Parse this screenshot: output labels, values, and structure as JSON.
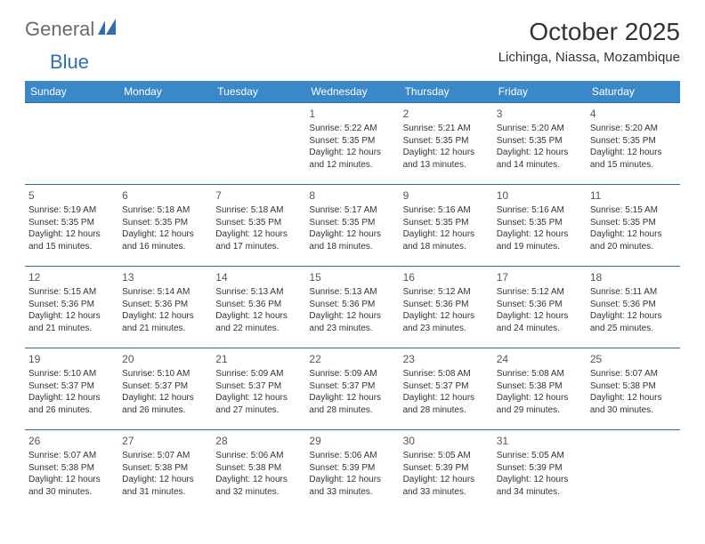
{
  "logo": {
    "text1": "General",
    "text2": "Blue"
  },
  "title": "October 2025",
  "subtitle": "Lichinga, Niassa, Mozambique",
  "header_color": "#3a88c8",
  "row_border_color": "#3a6a9a",
  "days": [
    "Sunday",
    "Monday",
    "Tuesday",
    "Wednesday",
    "Thursday",
    "Friday",
    "Saturday"
  ],
  "weeks": [
    [
      null,
      null,
      null,
      {
        "n": "1",
        "sr": "Sunrise: 5:22 AM",
        "ss": "Sunset: 5:35 PM",
        "d1": "Daylight: 12 hours",
        "d2": "and 12 minutes."
      },
      {
        "n": "2",
        "sr": "Sunrise: 5:21 AM",
        "ss": "Sunset: 5:35 PM",
        "d1": "Daylight: 12 hours",
        "d2": "and 13 minutes."
      },
      {
        "n": "3",
        "sr": "Sunrise: 5:20 AM",
        "ss": "Sunset: 5:35 PM",
        "d1": "Daylight: 12 hours",
        "d2": "and 14 minutes."
      },
      {
        "n": "4",
        "sr": "Sunrise: 5:20 AM",
        "ss": "Sunset: 5:35 PM",
        "d1": "Daylight: 12 hours",
        "d2": "and 15 minutes."
      }
    ],
    [
      {
        "n": "5",
        "sr": "Sunrise: 5:19 AM",
        "ss": "Sunset: 5:35 PM",
        "d1": "Daylight: 12 hours",
        "d2": "and 15 minutes."
      },
      {
        "n": "6",
        "sr": "Sunrise: 5:18 AM",
        "ss": "Sunset: 5:35 PM",
        "d1": "Daylight: 12 hours",
        "d2": "and 16 minutes."
      },
      {
        "n": "7",
        "sr": "Sunrise: 5:18 AM",
        "ss": "Sunset: 5:35 PM",
        "d1": "Daylight: 12 hours",
        "d2": "and 17 minutes."
      },
      {
        "n": "8",
        "sr": "Sunrise: 5:17 AM",
        "ss": "Sunset: 5:35 PM",
        "d1": "Daylight: 12 hours",
        "d2": "and 18 minutes."
      },
      {
        "n": "9",
        "sr": "Sunrise: 5:16 AM",
        "ss": "Sunset: 5:35 PM",
        "d1": "Daylight: 12 hours",
        "d2": "and 18 minutes."
      },
      {
        "n": "10",
        "sr": "Sunrise: 5:16 AM",
        "ss": "Sunset: 5:35 PM",
        "d1": "Daylight: 12 hours",
        "d2": "and 19 minutes."
      },
      {
        "n": "11",
        "sr": "Sunrise: 5:15 AM",
        "ss": "Sunset: 5:35 PM",
        "d1": "Daylight: 12 hours",
        "d2": "and 20 minutes."
      }
    ],
    [
      {
        "n": "12",
        "sr": "Sunrise: 5:15 AM",
        "ss": "Sunset: 5:36 PM",
        "d1": "Daylight: 12 hours",
        "d2": "and 21 minutes."
      },
      {
        "n": "13",
        "sr": "Sunrise: 5:14 AM",
        "ss": "Sunset: 5:36 PM",
        "d1": "Daylight: 12 hours",
        "d2": "and 21 minutes."
      },
      {
        "n": "14",
        "sr": "Sunrise: 5:13 AM",
        "ss": "Sunset: 5:36 PM",
        "d1": "Daylight: 12 hours",
        "d2": "and 22 minutes."
      },
      {
        "n": "15",
        "sr": "Sunrise: 5:13 AM",
        "ss": "Sunset: 5:36 PM",
        "d1": "Daylight: 12 hours",
        "d2": "and 23 minutes."
      },
      {
        "n": "16",
        "sr": "Sunrise: 5:12 AM",
        "ss": "Sunset: 5:36 PM",
        "d1": "Daylight: 12 hours",
        "d2": "and 23 minutes."
      },
      {
        "n": "17",
        "sr": "Sunrise: 5:12 AM",
        "ss": "Sunset: 5:36 PM",
        "d1": "Daylight: 12 hours",
        "d2": "and 24 minutes."
      },
      {
        "n": "18",
        "sr": "Sunrise: 5:11 AM",
        "ss": "Sunset: 5:36 PM",
        "d1": "Daylight: 12 hours",
        "d2": "and 25 minutes."
      }
    ],
    [
      {
        "n": "19",
        "sr": "Sunrise: 5:10 AM",
        "ss": "Sunset: 5:37 PM",
        "d1": "Daylight: 12 hours",
        "d2": "and 26 minutes."
      },
      {
        "n": "20",
        "sr": "Sunrise: 5:10 AM",
        "ss": "Sunset: 5:37 PM",
        "d1": "Daylight: 12 hours",
        "d2": "and 26 minutes."
      },
      {
        "n": "21",
        "sr": "Sunrise: 5:09 AM",
        "ss": "Sunset: 5:37 PM",
        "d1": "Daylight: 12 hours",
        "d2": "and 27 minutes."
      },
      {
        "n": "22",
        "sr": "Sunrise: 5:09 AM",
        "ss": "Sunset: 5:37 PM",
        "d1": "Daylight: 12 hours",
        "d2": "and 28 minutes."
      },
      {
        "n": "23",
        "sr": "Sunrise: 5:08 AM",
        "ss": "Sunset: 5:37 PM",
        "d1": "Daylight: 12 hours",
        "d2": "and 28 minutes."
      },
      {
        "n": "24",
        "sr": "Sunrise: 5:08 AM",
        "ss": "Sunset: 5:38 PM",
        "d1": "Daylight: 12 hours",
        "d2": "and 29 minutes."
      },
      {
        "n": "25",
        "sr": "Sunrise: 5:07 AM",
        "ss": "Sunset: 5:38 PM",
        "d1": "Daylight: 12 hours",
        "d2": "and 30 minutes."
      }
    ],
    [
      {
        "n": "26",
        "sr": "Sunrise: 5:07 AM",
        "ss": "Sunset: 5:38 PM",
        "d1": "Daylight: 12 hours",
        "d2": "and 30 minutes."
      },
      {
        "n": "27",
        "sr": "Sunrise: 5:07 AM",
        "ss": "Sunset: 5:38 PM",
        "d1": "Daylight: 12 hours",
        "d2": "and 31 minutes."
      },
      {
        "n": "28",
        "sr": "Sunrise: 5:06 AM",
        "ss": "Sunset: 5:38 PM",
        "d1": "Daylight: 12 hours",
        "d2": "and 32 minutes."
      },
      {
        "n": "29",
        "sr": "Sunrise: 5:06 AM",
        "ss": "Sunset: 5:39 PM",
        "d1": "Daylight: 12 hours",
        "d2": "and 33 minutes."
      },
      {
        "n": "30",
        "sr": "Sunrise: 5:05 AM",
        "ss": "Sunset: 5:39 PM",
        "d1": "Daylight: 12 hours",
        "d2": "and 33 minutes."
      },
      {
        "n": "31",
        "sr": "Sunrise: 5:05 AM",
        "ss": "Sunset: 5:39 PM",
        "d1": "Daylight: 12 hours",
        "d2": "and 34 minutes."
      },
      null
    ]
  ]
}
